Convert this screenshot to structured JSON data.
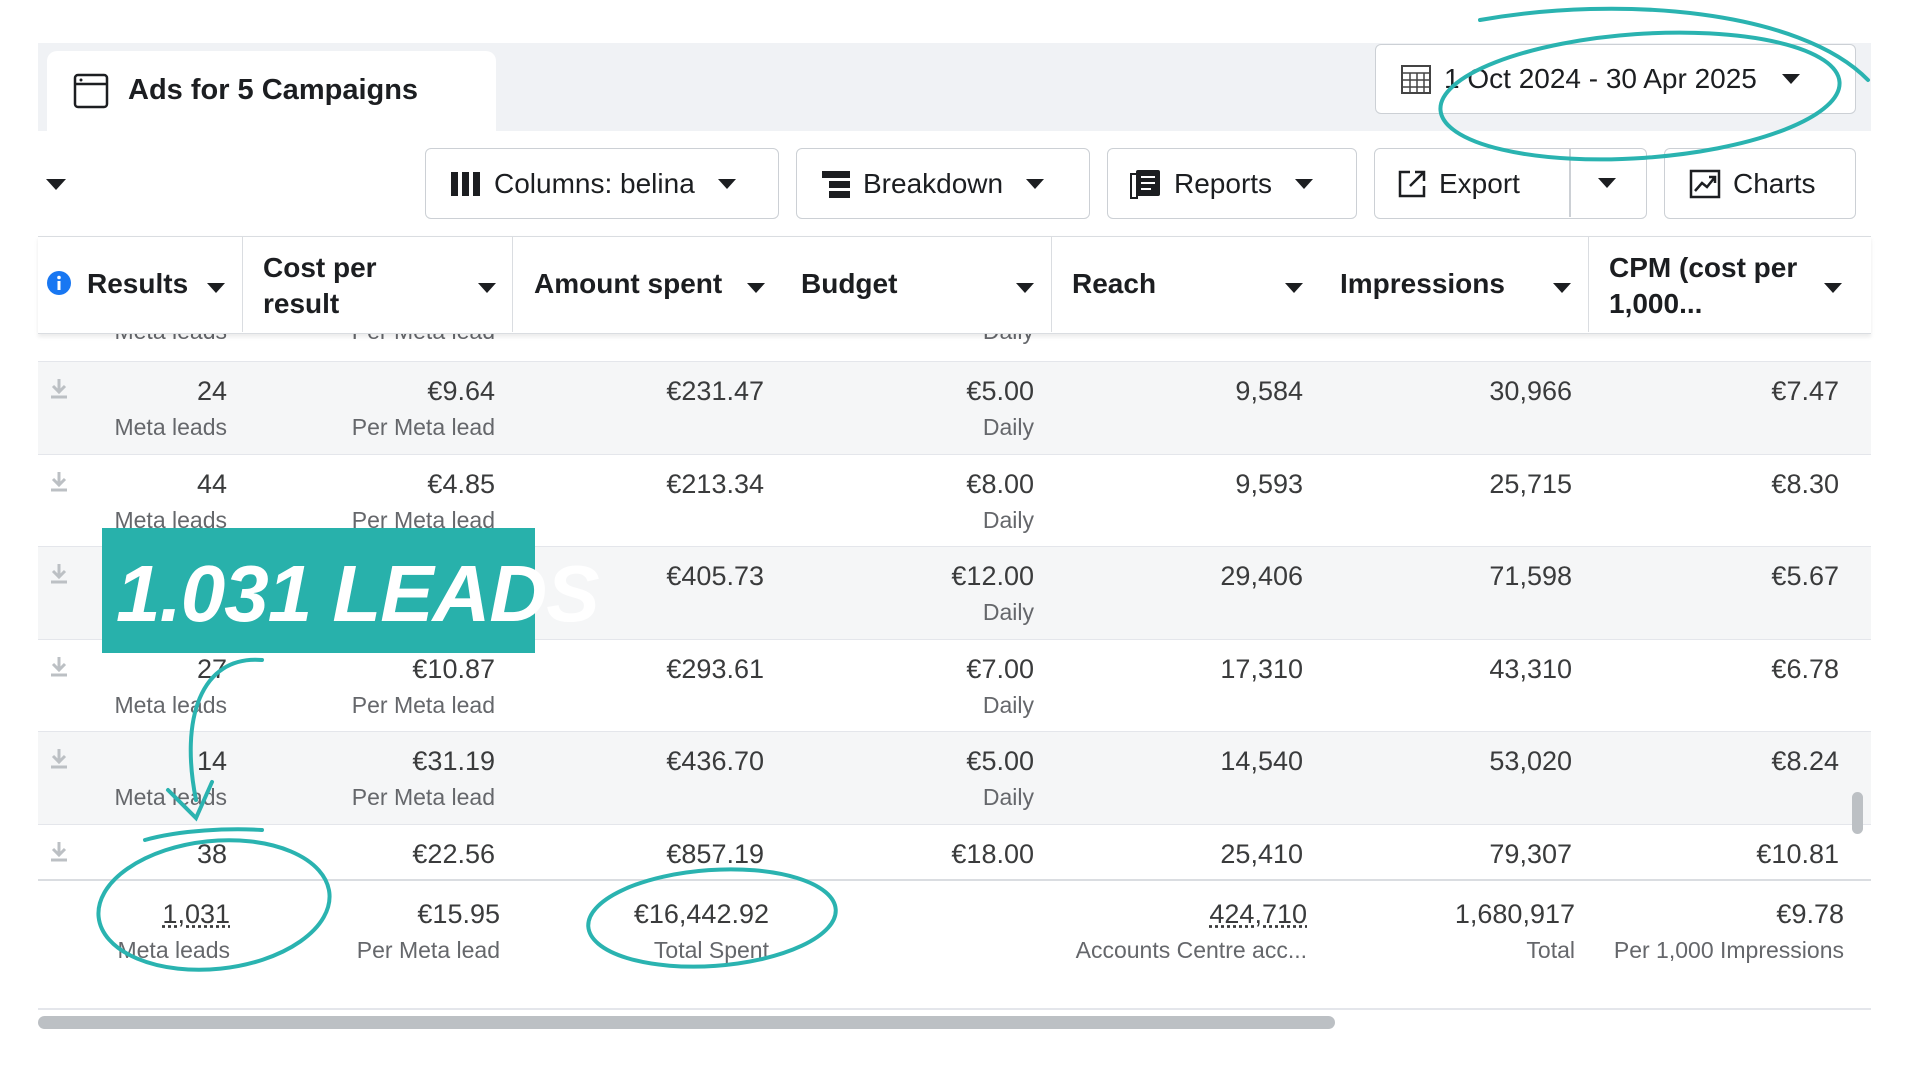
{
  "header": {
    "tab_title": "Ads for 5 Campaigns",
    "date_range": "1 Oct 2024 - 30 Apr 2025"
  },
  "toolbar": {
    "buttons": [
      "Columns: belina",
      "Breakdown",
      "Reports",
      "Export",
      "Charts"
    ]
  },
  "table": {
    "columns": [
      "Results",
      "Cost per result",
      "Amount spent",
      "Budget",
      "Reach",
      "Impressions",
      "CPM (cost per 1,000..."
    ],
    "partial_row": [
      "Meta leads",
      "Per Meta lead",
      "Daily"
    ],
    "rows": [
      [
        {
          "main": "24",
          "sub": "Meta leads"
        },
        {
          "main": "€9.64",
          "sub": "Per Meta lead"
        },
        {
          "main": "€231.47"
        },
        {
          "main": "€5.00",
          "sub": "Daily"
        },
        {
          "main": "9,584"
        },
        {
          "main": "30,966"
        },
        {
          "main": "€7.47"
        }
      ],
      [
        {
          "main": "44",
          "sub": "Meta leads"
        },
        {
          "main": "€4.85",
          "sub": "Per Meta lead"
        },
        {
          "main": "€213.34"
        },
        {
          "main": "€8.00",
          "sub": "Daily"
        },
        {
          "main": "9,593"
        },
        {
          "main": "25,715"
        },
        {
          "main": "€8.30"
        }
      ],
      [
        null,
        null,
        {
          "main": "€405.73"
        },
        {
          "main": "€12.00",
          "sub": "Daily"
        },
        {
          "main": "29,406"
        },
        {
          "main": "71,598"
        },
        {
          "main": "€5.67"
        }
      ],
      [
        {
          "main": "27",
          "sub": "Meta leads"
        },
        {
          "main": "€10.87",
          "sub": "Per Meta lead"
        },
        {
          "main": "€293.61"
        },
        {
          "main": "€7.00",
          "sub": "Daily"
        },
        {
          "main": "17,310"
        },
        {
          "main": "43,310"
        },
        {
          "main": "€6.78"
        }
      ],
      [
        {
          "main": "14",
          "sub": "Meta leads"
        },
        {
          "main": "€31.19",
          "sub": "Per Meta lead"
        },
        {
          "main": "€436.70"
        },
        {
          "main": "€5.00",
          "sub": "Daily"
        },
        {
          "main": "14,540"
        },
        {
          "main": "53,020"
        },
        {
          "main": "€8.24"
        }
      ],
      [
        {
          "main": "38"
        },
        {
          "main": "€22.56"
        },
        {
          "main": "€857.19"
        },
        {
          "main": "€18.00"
        },
        {
          "main": "25,410"
        },
        {
          "main": "79,307"
        },
        {
          "main": "€10.81"
        }
      ]
    ],
    "totals": [
      {
        "main": "1,031",
        "sub": "Meta leads"
      },
      {
        "main": "€15.95",
        "sub": "Per Meta lead"
      },
      {
        "main": "€16,442.92",
        "sub": "Total Spent"
      },
      null,
      {
        "main": "424,710",
        "sub": "Accounts Centre acc..."
      },
      {
        "main": "1,680,917",
        "sub": "Total"
      },
      {
        "main": "€9.78",
        "sub": "Per 1,000 Impressions"
      }
    ]
  },
  "overlay": {
    "label": "1.031 LEADS"
  }
}
